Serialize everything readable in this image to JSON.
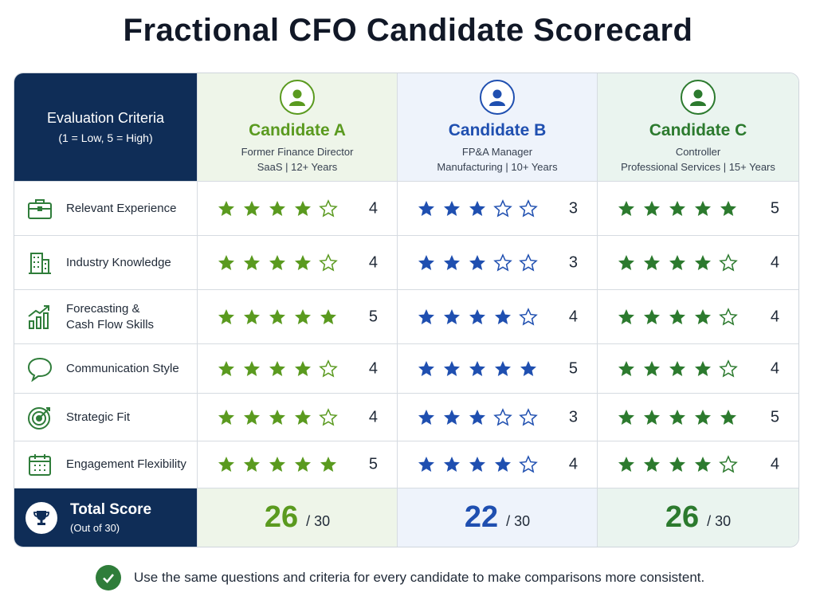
{
  "title": "Fractional CFO Candidate Scorecard",
  "criteria_header": {
    "title": "Evaluation Criteria",
    "scale": "(1 = Low, 5 = High)"
  },
  "colors": {
    "navy": "#0f2d57",
    "candidate_a": "#5a9a1f",
    "candidate_b": "#1f4fb0",
    "candidate_c": "#2c7a2e"
  },
  "candidates": [
    {
      "name": "Candidate A",
      "role": "Former Finance Director",
      "detail": "SaaS | 12+ Years",
      "total": "26"
    },
    {
      "name": "Candidate B",
      "role": "FP&A Manager",
      "detail": "Manufacturing | 10+ Years",
      "total": "22"
    },
    {
      "name": "Candidate C",
      "role": "Controller",
      "detail": "Professional Services | 15+ Years",
      "total": "26"
    }
  ],
  "criteria": [
    {
      "label": "Relevant Experience",
      "icon": "briefcase-icon",
      "scores": [
        4,
        3,
        5
      ]
    },
    {
      "label": "Industry Knowledge",
      "icon": "building-icon",
      "scores": [
        4,
        3,
        4
      ]
    },
    {
      "label_line1": "Forecasting &",
      "label_line2": "Cash Flow Skills",
      "icon": "chart-growth-icon",
      "scores": [
        5,
        4,
        4
      ]
    },
    {
      "label": "Communication Style",
      "icon": "speech-bubble-icon",
      "scores": [
        4,
        5,
        4
      ]
    },
    {
      "label": "Strategic Fit",
      "icon": "target-icon",
      "scores": [
        4,
        3,
        5
      ]
    },
    {
      "label": "Engagement Flexibility",
      "icon": "calendar-icon",
      "scores": [
        5,
        4,
        4
      ]
    }
  ],
  "total": {
    "label": "Total Score",
    "sublabel": "(Out of 30)",
    "denominator": "/ 30"
  },
  "footer": "Use the same questions and criteria for every candidate to make comparisons more consistent."
}
